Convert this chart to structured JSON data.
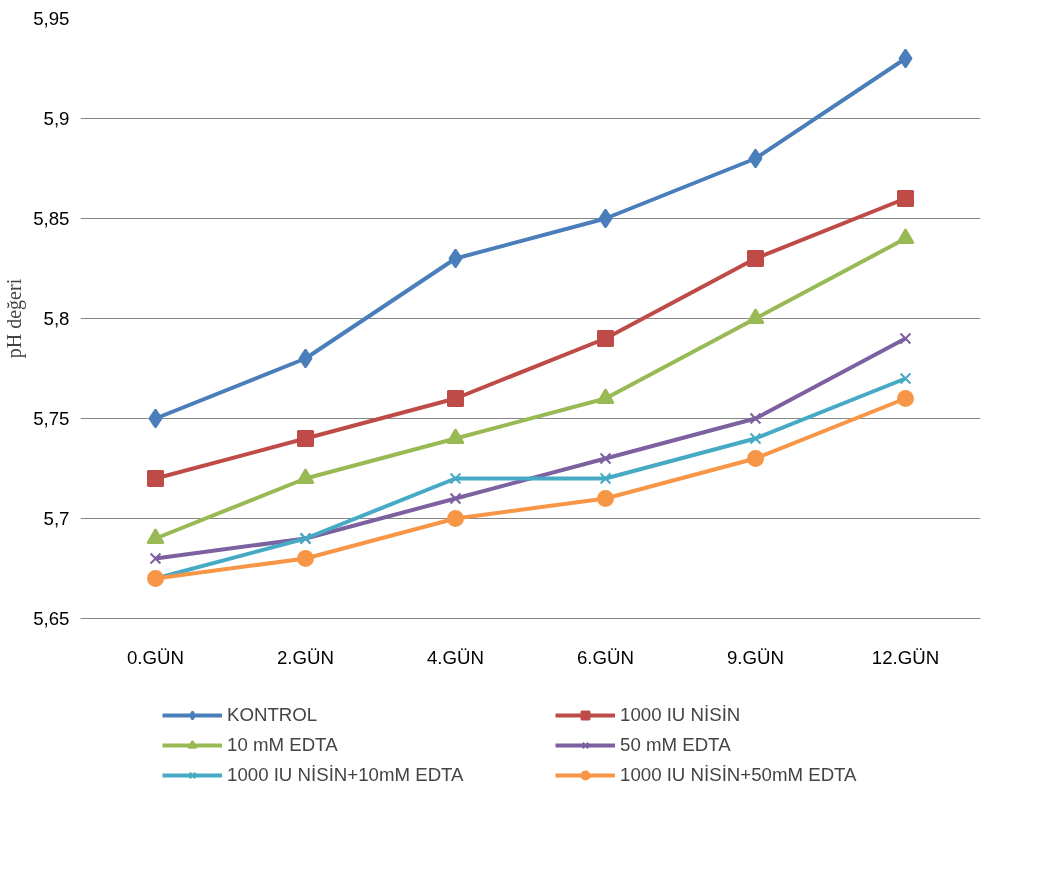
{
  "chart_data": {
    "type": "line",
    "ylabel": "pH değeri",
    "categories": [
      "0.GÜN",
      "2.GÜN",
      "4.GÜN",
      "6.GÜN",
      "9.GÜN",
      "12.GÜN"
    ],
    "ylim": [
      5.65,
      5.95
    ],
    "yticks": [
      {
        "value": 5.65,
        "label": "5,65"
      },
      {
        "value": 5.7,
        "label": "5,7"
      },
      {
        "value": 5.75,
        "label": "5,75"
      },
      {
        "value": 5.8,
        "label": "5,8"
      },
      {
        "value": 5.85,
        "label": "5,85"
      },
      {
        "value": 5.9,
        "label": "5,9"
      },
      {
        "value": 5.95,
        "label": "5,95"
      }
    ],
    "grid": "y",
    "legend": "bottom",
    "line_style": "solid",
    "series": [
      {
        "name": "KONTROL",
        "color": "#4a7ebb",
        "marker": "diamond",
        "values": [
          5.75,
          5.78,
          5.83,
          5.85,
          5.88,
          5.93
        ]
      },
      {
        "name": "1000 IU NİSİN",
        "color": "#be4b48",
        "marker": "square",
        "values": [
          5.72,
          5.74,
          5.76,
          5.79,
          5.83,
          5.86
        ]
      },
      {
        "name": "10 mM EDTA",
        "color": "#98b954",
        "marker": "triangle",
        "values": [
          5.69,
          5.72,
          5.74,
          5.76,
          5.8,
          5.84
        ]
      },
      {
        "name": "50 mM EDTA",
        "color": "#7d60a0",
        "marker": "cross",
        "values": [
          5.68,
          5.69,
          5.71,
          5.73,
          5.75,
          5.79
        ]
      },
      {
        "name": "1000 IU NİSİN+10mM EDTA",
        "color": "#46aac5",
        "marker": "cross",
        "values": [
          5.67,
          5.69,
          5.72,
          5.72,
          5.74,
          5.77
        ]
      },
      {
        "name": "1000 IU NİSİN+50mM EDTA",
        "color": "#f79646",
        "marker": "circle",
        "values": [
          5.67,
          5.68,
          5.7,
          5.71,
          5.73,
          5.76
        ]
      }
    ]
  }
}
